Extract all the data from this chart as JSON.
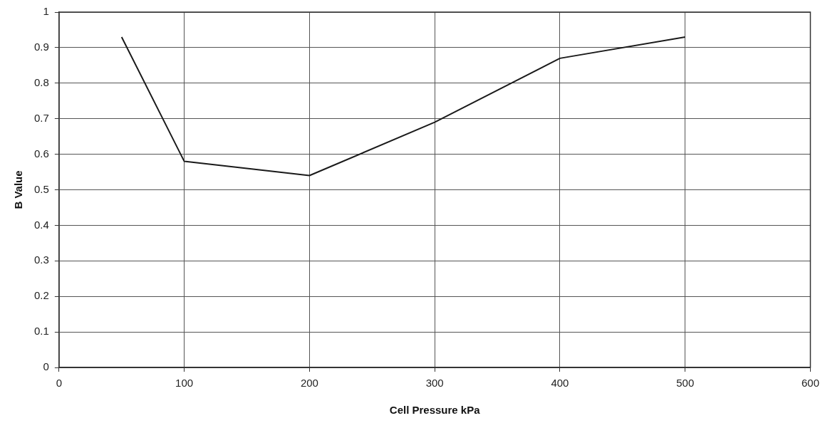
{
  "chart_data": {
    "type": "line",
    "xlabel": "Cell Pressure kPa",
    "ylabel": "B Value",
    "x": [
      50,
      100,
      200,
      300,
      400,
      500
    ],
    "series": [
      {
        "color": "#1a1a1a",
        "values": [
          0.93,
          0.58,
          0.54,
          0.69,
          0.87,
          0.93
        ]
      }
    ],
    "xlim": [
      0,
      600
    ],
    "xticks": [
      0,
      100,
      200,
      300,
      400,
      500,
      600
    ],
    "ylim": [
      0,
      1
    ],
    "yticks": [
      0,
      0.1,
      0.2,
      0.3,
      0.4,
      0.5,
      0.6,
      0.7,
      0.8,
      0.9,
      1
    ],
    "grid": true,
    "legend": false,
    "marker": "none",
    "line_style": "solid"
  }
}
